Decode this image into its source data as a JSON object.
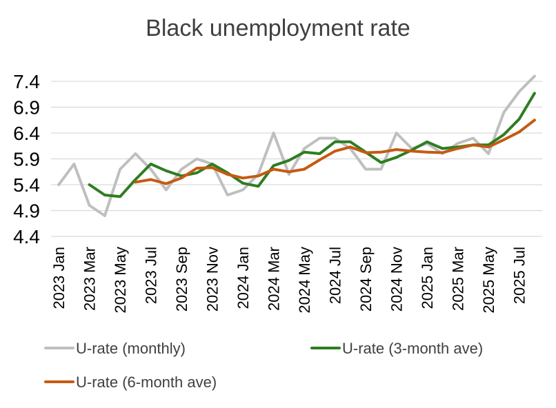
{
  "chart_data": {
    "type": "line",
    "title": "Black unemployment rate",
    "xlabel": "",
    "ylabel": "",
    "ylim": [
      4.4,
      7.4
    ],
    "yticks": [
      "7.4",
      "6.9",
      "6.4",
      "5.9",
      "5.4",
      "4.9",
      "4.4"
    ],
    "grid": true,
    "legend_position": "bottom",
    "x": [
      "2023 Jan",
      "2023 Feb",
      "2023 Mar",
      "2023 Apr",
      "2023 May",
      "2023 Jun",
      "2023 Jul",
      "2023 Aug",
      "2023 Sep",
      "2023 Oct",
      "2023 Nov",
      "2023 Dec",
      "2024 Jan",
      "2024 Feb",
      "2024 Mar",
      "2024 Apr",
      "2024 May",
      "2024 Jun",
      "2024 Jul",
      "2024 Aug",
      "2024 Sep",
      "2024 Oct",
      "2024 Nov",
      "2024 Dec",
      "2025 Jan",
      "2025 Feb",
      "2025 Mar",
      "2025 Apr",
      "2025 May",
      "2025 Jun",
      "2025 Jul",
      "2025 Aug"
    ],
    "x_tick_labels": [
      "2023 Jan",
      "2023 Mar",
      "2023 May",
      "2023 Jul",
      "2023 Sep",
      "2023 Nov",
      "2024 Jan",
      "2024 Mar",
      "2024 May",
      "2024 Jul",
      "2024 Sep",
      "2024 Nov",
      "2025 Jan",
      "2025 Mar",
      "2025 May",
      "2025 Jul"
    ],
    "series": [
      {
        "name": "U-rate (monthly)",
        "color": "#bfbfbf",
        "values": [
          5.4,
          5.8,
          5.0,
          4.8,
          5.7,
          6.0,
          5.7,
          5.3,
          5.7,
          5.9,
          5.8,
          5.2,
          5.3,
          5.6,
          6.4,
          5.6,
          6.1,
          6.3,
          6.3,
          6.1,
          5.7,
          5.7,
          6.4,
          6.1,
          6.2,
          6.0,
          6.2,
          6.3,
          6.0,
          6.8,
          7.2,
          7.5
        ]
      },
      {
        "name": "U-rate (3-month ave)",
        "color": "#2e7d20",
        "values": [
          null,
          null,
          5.4,
          5.2,
          5.17,
          5.5,
          5.8,
          5.67,
          5.57,
          5.63,
          5.8,
          5.63,
          5.43,
          5.37,
          5.77,
          5.87,
          6.03,
          6.0,
          6.23,
          6.23,
          6.03,
          5.83,
          5.93,
          6.07,
          6.23,
          6.1,
          6.13,
          6.17,
          6.17,
          6.37,
          6.67,
          7.17
        ]
      },
      {
        "name": "U-rate (6-month ave)",
        "color": "#c55a11",
        "values": [
          null,
          null,
          null,
          null,
          null,
          5.45,
          5.5,
          5.42,
          5.53,
          5.72,
          5.73,
          5.6,
          5.53,
          5.57,
          5.7,
          5.65,
          5.7,
          5.88,
          6.05,
          6.13,
          6.02,
          6.03,
          6.08,
          6.05,
          6.03,
          6.02,
          6.1,
          6.17,
          6.13,
          6.27,
          6.42,
          6.65
        ]
      }
    ]
  }
}
